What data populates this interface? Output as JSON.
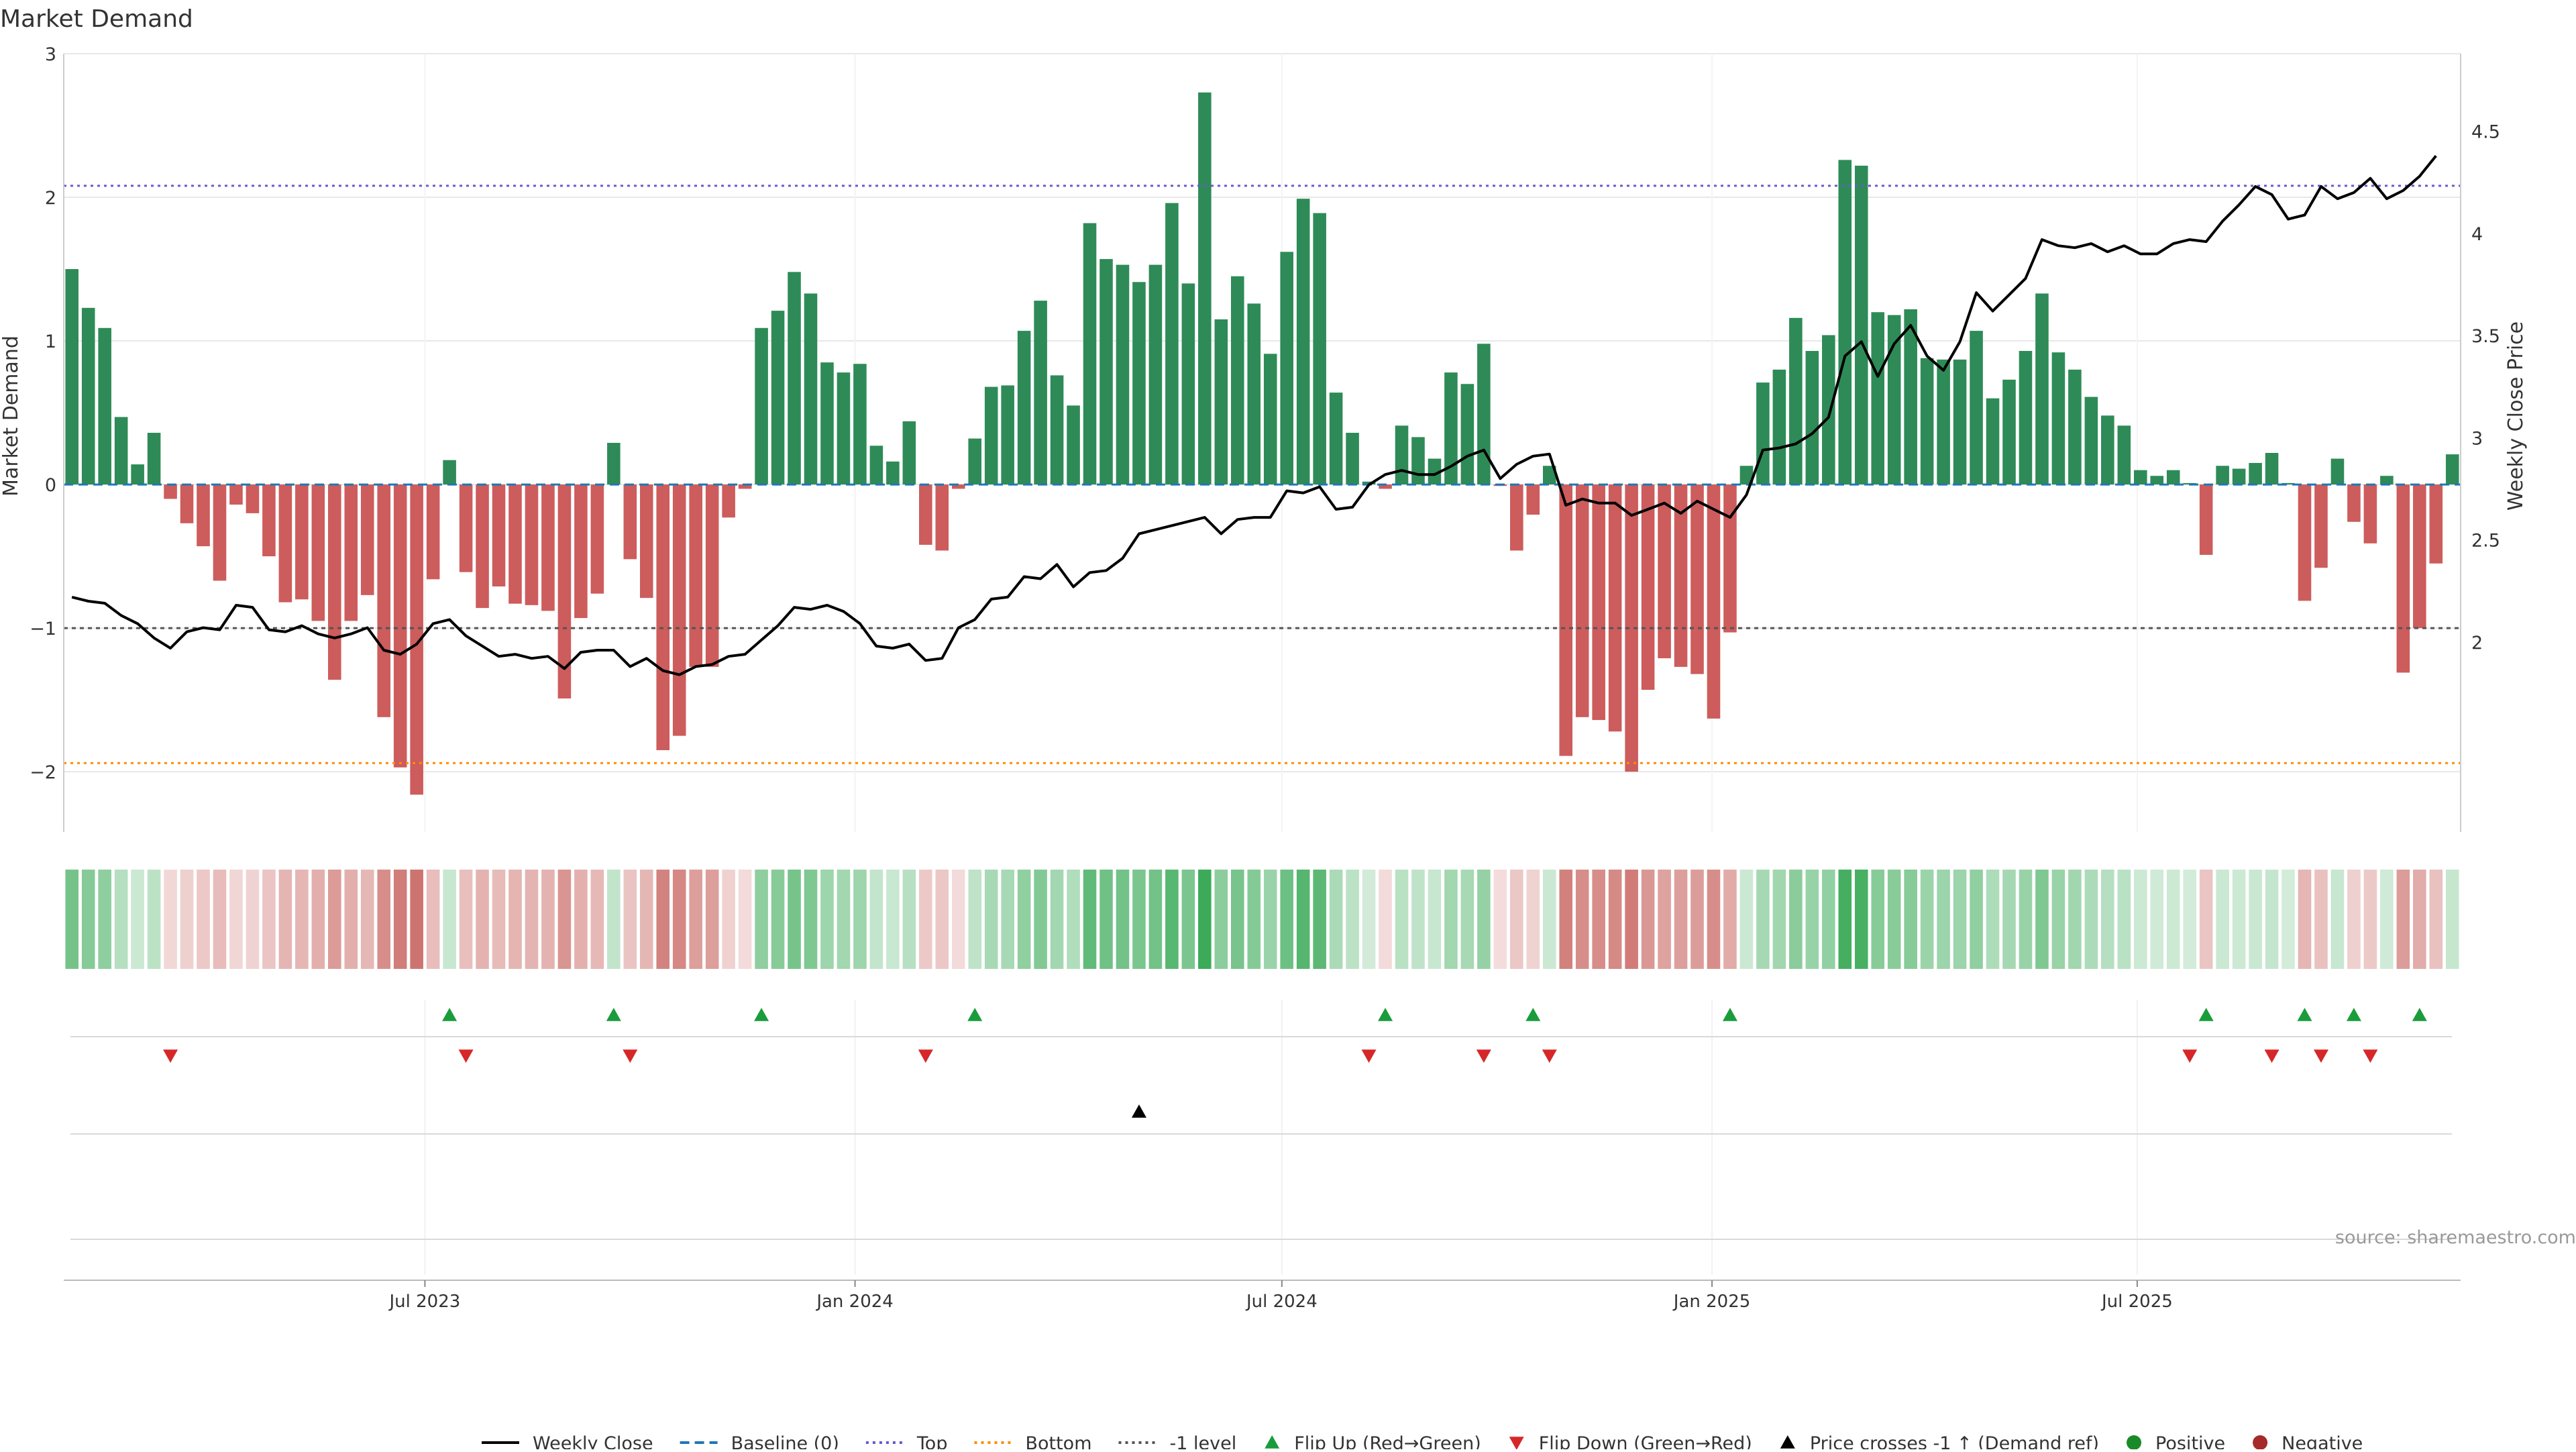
{
  "chart_data": {
    "type": "bar",
    "title": "Market Demand",
    "ylabel": "Market Demand",
    "y2label": "Weekly Close Price",
    "ylim": [
      -2.42,
      3.0
    ],
    "y2lim": [
      1.07,
      4.88
    ],
    "yticks": [
      -2,
      -1,
      0,
      1,
      2,
      3
    ],
    "y2ticks": [
      2,
      2.5,
      3,
      3.5,
      4,
      4.5
    ],
    "y2tick_labels": [
      "2",
      "2.5",
      "3",
      "3.5",
      "4",
      "4.5"
    ],
    "xticks": [
      {
        "label": "Jul 2023",
        "week": 21.5
      },
      {
        "label": "Jan 2024",
        "week": 47.7
      },
      {
        "label": "Jul 2024",
        "week": 73.7
      },
      {
        "label": "Jan 2025",
        "week": 99.9
      },
      {
        "label": "Jul 2025",
        "week": 125.8
      }
    ],
    "reference_lines": {
      "baseline": 0,
      "top": 2.08,
      "bottom": -1.94,
      "minus_one": -1
    },
    "demand": [
      1.5,
      1.23,
      1.09,
      0.47,
      0.14,
      0.36,
      -0.1,
      -0.27,
      -0.43,
      -0.67,
      -0.14,
      -0.2,
      -0.5,
      -0.82,
      -0.8,
      -0.95,
      -1.36,
      -0.95,
      -0.77,
      -1.62,
      -1.97,
      -2.16,
      -0.66,
      0.17,
      -0.61,
      -0.86,
      -0.71,
      -0.83,
      -0.84,
      -0.88,
      -1.49,
      -0.93,
      -0.76,
      0.29,
      -0.52,
      -0.79,
      -1.85,
      -1.75,
      -1.27,
      -1.27,
      -0.23,
      -0.03,
      1.09,
      1.21,
      1.48,
      1.33,
      0.85,
      0.78,
      0.84,
      0.27,
      0.16,
      0.44,
      -0.42,
      -0.46,
      -0.03,
      0.32,
      0.68,
      0.69,
      1.07,
      1.28,
      0.76,
      0.55,
      1.82,
      1.57,
      1.53,
      1.41,
      1.53,
      1.96,
      1.4,
      2.73,
      1.15,
      1.45,
      1.26,
      0.91,
      1.62,
      1.99,
      1.89,
      0.64,
      0.36,
      0.02,
      -0.03,
      0.41,
      0.33,
      0.18,
      0.78,
      0.7,
      0.98,
      -0.01,
      -0.46,
      -0.21,
      0.13,
      -1.89,
      -1.62,
      -1.64,
      -1.72,
      -2.0,
      -1.43,
      -1.21,
      -1.27,
      -1.32,
      -1.63,
      -1.03,
      0.13,
      0.71,
      0.8,
      1.16,
      0.93,
      1.04,
      2.26,
      2.22,
      1.2,
      1.18,
      1.22,
      0.88,
      0.87,
      0.87,
      1.07,
      0.6,
      0.73,
      0.93,
      1.33,
      0.92,
      0.8,
      0.61,
      0.48,
      0.41,
      0.1,
      0.06,
      0.1,
      0.01,
      -0.49,
      0.13,
      0.11,
      0.15,
      0.22,
      0.01,
      -0.81,
      -0.58,
      0.18,
      -0.26,
      -0.41,
      0.06,
      -1.31,
      -1.0,
      -0.55,
      0.21
    ],
    "weekly_close": [
      2.22,
      2.2,
      2.19,
      2.13,
      2.09,
      2.02,
      1.97,
      2.05,
      2.07,
      2.06,
      2.18,
      2.17,
      2.06,
      2.05,
      2.08,
      2.04,
      2.02,
      2.04,
      2.07,
      1.96,
      1.94,
      1.99,
      2.09,
      2.11,
      2.03,
      1.98,
      1.93,
      1.94,
      1.92,
      1.93,
      1.87,
      1.95,
      1.96,
      1.96,
      1.88,
      1.92,
      1.86,
      1.84,
      1.88,
      1.89,
      1.93,
      1.94,
      2.01,
      2.08,
      2.17,
      2.16,
      2.18,
      2.15,
      2.09,
      1.98,
      1.97,
      1.99,
      1.91,
      1.92,
      2.07,
      2.11,
      2.21,
      2.22,
      2.32,
      2.31,
      2.38,
      2.27,
      2.34,
      2.35,
      2.41,
      2.53,
      2.55,
      2.57,
      2.59,
      2.61,
      2.53,
      2.6,
      2.61,
      2.61,
      2.74,
      2.73,
      2.76,
      2.65,
      2.66,
      2.77,
      2.82,
      2.84,
      2.82,
      2.82,
      2.86,
      2.91,
      2.94,
      2.8,
      2.87,
      2.91,
      2.92,
      2.67,
      2.7,
      2.68,
      2.68,
      2.62,
      2.65,
      2.68,
      2.63,
      2.69,
      2.65,
      2.61,
      2.72,
      2.94,
      2.95,
      2.97,
      3.02,
      3.1,
      3.4,
      3.47,
      3.3,
      3.46,
      3.55,
      3.4,
      3.33,
      3.47,
      3.71,
      3.62,
      3.7,
      3.78,
      3.97,
      3.94,
      3.93,
      3.95,
      3.91,
      3.94,
      3.9,
      3.9,
      3.95,
      3.97,
      3.96,
      4.06,
      4.14,
      4.23,
      4.19,
      4.07,
      4.09,
      4.23,
      4.17,
      4.2,
      4.27,
      4.17,
      4.21,
      4.28,
      4.38
    ],
    "flip_up_weeks": [
      23,
      33,
      42,
      55,
      80,
      89,
      101,
      130,
      136,
      139,
      143
    ],
    "flip_down_weeks": [
      6,
      24,
      34,
      52,
      79,
      86,
      90,
      129,
      134,
      137,
      140
    ],
    "price_cross_weeks": [
      65
    ],
    "colors": {
      "positive": "#2e8b57",
      "negative": "#cd5c5c",
      "price": "#000000",
      "baseline": "#1f77b4",
      "top": "#6a5acd",
      "bottom": "#ff8c00",
      "minus_one": "#555555",
      "flip_up": "#1a9c3c",
      "flip_down": "#d62728",
      "grid": "#e8e8e8",
      "text": "#333333"
    },
    "legend": [
      {
        "label": "Weekly Close",
        "marker": "line-solid",
        "color": "#000000"
      },
      {
        "label": "Baseline (0)",
        "marker": "line-dashed",
        "color": "#1f77b4"
      },
      {
        "label": "Top",
        "marker": "line-dotted",
        "color": "#6a5acd"
      },
      {
        "label": "Bottom",
        "marker": "line-dotted",
        "color": "#ff8c00"
      },
      {
        "label": "-1 level",
        "marker": "line-dotted",
        "color": "#555555"
      },
      {
        "label": "Flip Up (Red→Green)",
        "marker": "triangle-up",
        "color": "#1a9c3c"
      },
      {
        "label": "Flip Down (Green→Red)",
        "marker": "triangle-down",
        "color": "#d62728"
      },
      {
        "label": "Price crosses -1 ↑ (Demand ref)",
        "marker": "triangle-up",
        "color": "#000000"
      },
      {
        "label": "Positive",
        "marker": "circle",
        "color": "#1a8a28"
      },
      {
        "label": "Negative",
        "marker": "circle",
        "color": "#a52a2a"
      }
    ],
    "source": "source: sharemaestro.com"
  }
}
